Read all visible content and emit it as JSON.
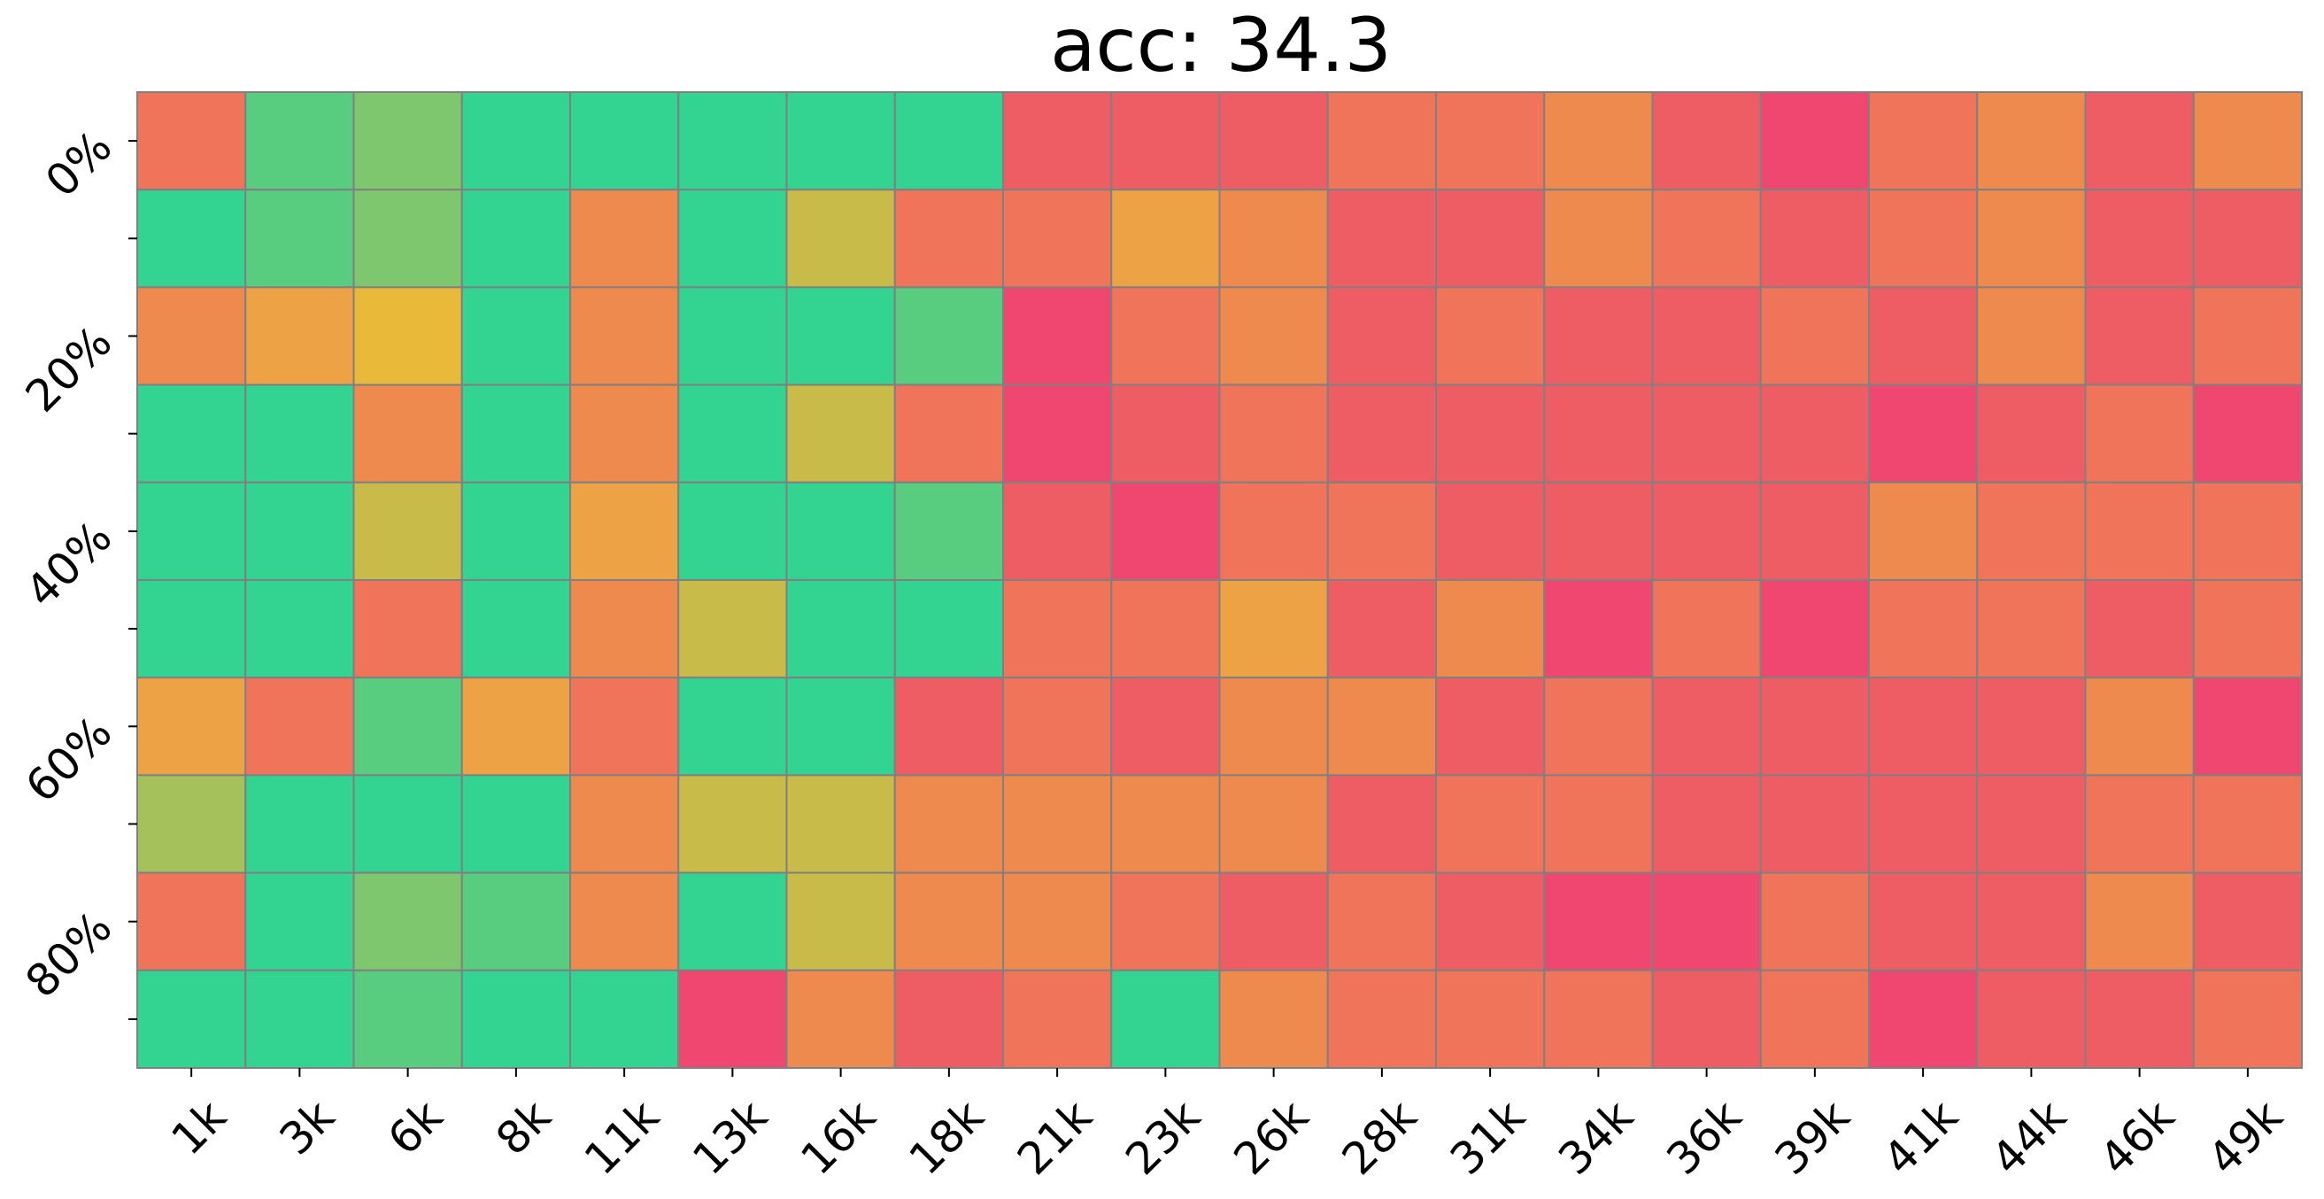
{
  "chart_data": {
    "type": "heatmap",
    "title": "acc: 34.3",
    "x_tick_labels": [
      "1k",
      "3k",
      "6k",
      "8k",
      "11k",
      "13k",
      "16k",
      "18k",
      "21k",
      "23k",
      "26k",
      "28k",
      "31k",
      "34k",
      "36k",
      "39k",
      "41k",
      "44k",
      "46k",
      "49k"
    ],
    "y_tick_labels": [
      "0%",
      "",
      "20%",
      "",
      "40%",
      "",
      "60%",
      "",
      "80%",
      ""
    ],
    "color_scale": {
      "low": "#ef476f",
      "mid": "#e9b93a",
      "high": "#33d391",
      "stops": [
        {
          "value": 0.0,
          "color": "#ef476f"
        },
        {
          "value": 0.3,
          "color": "#ef8a4f"
        },
        {
          "value": 0.5,
          "color": "#e9b93a"
        },
        {
          "value": 0.6,
          "color": "#c9bb4a"
        },
        {
          "value": 1.0,
          "color": "#33d391"
        }
      ]
    },
    "values": [
      [
        0.2,
        0.9,
        0.8,
        1.0,
        1.0,
        1.0,
        1.0,
        1.0,
        0.1,
        0.1,
        0.1,
        0.2,
        0.2,
        0.3,
        0.1,
        0.0,
        0.2,
        0.3,
        0.1,
        0.3
      ],
      [
        1.0,
        0.9,
        0.8,
        1.0,
        0.3,
        1.0,
        0.6,
        0.2,
        0.2,
        0.4,
        0.3,
        0.1,
        0.1,
        0.3,
        0.2,
        0.1,
        0.2,
        0.3,
        0.1,
        0.1
      ],
      [
        0.3,
        0.4,
        0.5,
        1.0,
        0.3,
        1.0,
        1.0,
        0.9,
        0.0,
        0.2,
        0.3,
        0.1,
        0.2,
        0.1,
        0.1,
        0.2,
        0.1,
        0.3,
        0.1,
        0.2
      ],
      [
        1.0,
        1.0,
        0.3,
        1.0,
        0.3,
        1.0,
        0.6,
        0.2,
        0.0,
        0.1,
        0.2,
        0.1,
        0.1,
        0.1,
        0.1,
        0.1,
        0.0,
        0.1,
        0.2,
        0.0
      ],
      [
        1.0,
        1.0,
        0.6,
        1.0,
        0.4,
        1.0,
        1.0,
        0.9,
        0.1,
        0.0,
        0.2,
        0.2,
        0.1,
        0.1,
        0.1,
        0.1,
        0.3,
        0.2,
        0.2,
        0.2
      ],
      [
        1.0,
        1.0,
        0.2,
        1.0,
        0.3,
        0.6,
        1.0,
        1.0,
        0.2,
        0.2,
        0.4,
        0.1,
        0.3,
        0.0,
        0.2,
        0.0,
        0.2,
        0.2,
        0.1,
        0.2
      ],
      [
        0.4,
        0.2,
        0.9,
        0.4,
        0.2,
        1.0,
        1.0,
        0.1,
        0.2,
        0.1,
        0.3,
        0.3,
        0.1,
        0.2,
        0.1,
        0.1,
        0.1,
        0.1,
        0.3,
        0.0
      ],
      [
        0.7,
        1.0,
        1.0,
        1.0,
        0.3,
        0.6,
        0.6,
        0.3,
        0.3,
        0.3,
        0.3,
        0.1,
        0.2,
        0.2,
        0.1,
        0.1,
        0.1,
        0.1,
        0.2,
        0.2
      ],
      [
        0.2,
        1.0,
        0.8,
        0.9,
        0.3,
        1.0,
        0.6,
        0.3,
        0.3,
        0.2,
        0.1,
        0.2,
        0.1,
        0.0,
        0.0,
        0.2,
        0.1,
        0.1,
        0.3,
        0.1
      ],
      [
        1.0,
        1.0,
        0.9,
        1.0,
        1.0,
        0.0,
        0.3,
        0.1,
        0.2,
        1.0,
        0.3,
        0.2,
        0.2,
        0.2,
        0.1,
        0.2,
        0.0,
        0.1,
        0.1,
        0.2
      ]
    ],
    "value_range": [
      0,
      1
    ],
    "cell_border_color": "#808080",
    "grid": false,
    "legend": "none"
  }
}
